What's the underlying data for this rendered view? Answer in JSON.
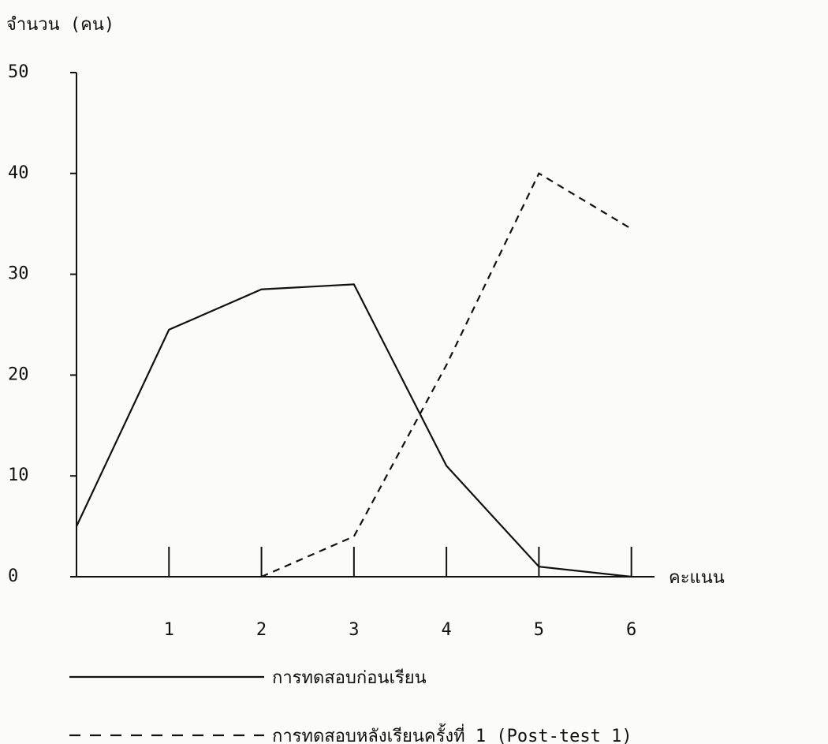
{
  "chart_data": {
    "type": "line",
    "y_label": "จำนวน (คน)",
    "x_label": "คะแนน",
    "x": [
      0,
      1,
      2,
      3,
      4,
      5,
      6
    ],
    "series": [
      {
        "name": "การทดสอบก่อนเรียน",
        "color": "#111111",
        "dashed": false,
        "values": [
          5,
          24.5,
          28.5,
          29,
          11,
          1,
          0
        ]
      },
      {
        "name": "การทดสอบหลังเรียนครั้งที่ 1 (Post-test 1)",
        "color": "#111111",
        "dashed": true,
        "values": [
          null,
          null,
          0,
          4,
          21,
          40,
          34.5
        ]
      }
    ],
    "xlim": [
      0,
      6.25
    ],
    "xticks": [
      1,
      2,
      3,
      4,
      5,
      6
    ],
    "ylim": [
      0,
      50
    ],
    "yticks": [
      0,
      10,
      20,
      30,
      40,
      50
    ],
    "grid": false
  }
}
